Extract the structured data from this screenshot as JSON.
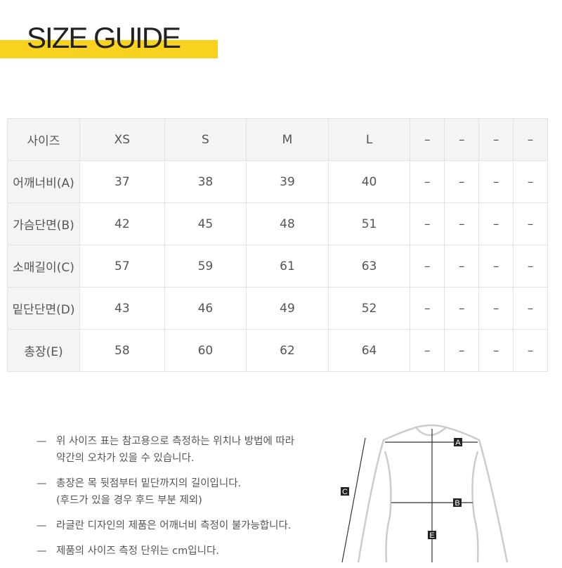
{
  "title": "SIZE GUIDE",
  "table": {
    "header": [
      "사이즈",
      "XS",
      "S",
      "M",
      "L",
      "–",
      "–",
      "–",
      "–"
    ],
    "rows": [
      [
        "어깨너비(A)",
        "37",
        "38",
        "39",
        "40",
        "–",
        "–",
        "–",
        "–"
      ],
      [
        "가슴단면(B)",
        "42",
        "45",
        "48",
        "51",
        "–",
        "–",
        "–",
        "–"
      ],
      [
        "소매길이(C)",
        "57",
        "59",
        "61",
        "63",
        "–",
        "–",
        "–",
        "–"
      ],
      [
        "밑단단면(D)",
        "43",
        "46",
        "49",
        "52",
        "–",
        "–",
        "–",
        "–"
      ],
      [
        "총장(E)",
        "58",
        "60",
        "62",
        "64",
        "–",
        "–",
        "–",
        "–"
      ]
    ]
  },
  "notes": [
    {
      "dash": "—",
      "lines": [
        "위 사이즈 표는 참고용으로 측정하는 위치나 방법에 따라",
        "약간의 오차가 있을 수 있습니다."
      ]
    },
    {
      "dash": "—",
      "lines": [
        "총장은 목 뒷점부터 밑단까지의 길이입니다.",
        "(후드가 있을 경우 후드 부분 제외)"
      ]
    },
    {
      "dash": "—",
      "lines": [
        "라글란 디자인의 제품은 어깨너비 측정이 불가능합니다."
      ]
    },
    {
      "dash": "—",
      "lines": [
        "제품의 사이즈 측정 단위는 cm입니다."
      ]
    }
  ],
  "diagram": {
    "labels": [
      "A",
      "B",
      "C",
      "E"
    ]
  },
  "colors": {
    "accent": "#f8d21e"
  }
}
